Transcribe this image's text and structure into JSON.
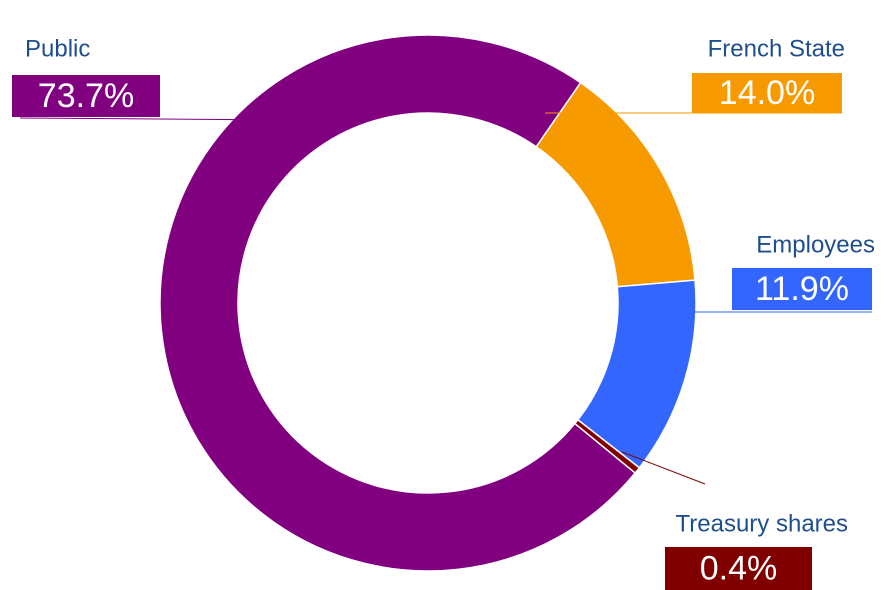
{
  "chart_data": {
    "type": "donut",
    "categories": [
      "French State",
      "Employees",
      "Treasury shares",
      "Public"
    ],
    "values": [
      14.0,
      11.9,
      0.4,
      73.7
    ],
    "value_labels": [
      "14.0%",
      "11.9%",
      "0.4%",
      "73.7%"
    ],
    "colors": [
      "#f79a00",
      "#3366ff",
      "#800000",
      "#800080"
    ]
  }
}
